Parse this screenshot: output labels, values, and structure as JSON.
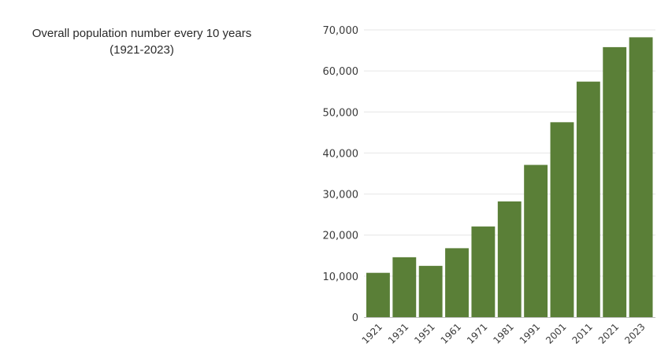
{
  "chart_data": {
    "type": "bar",
    "title": "Overall population number every 10 years",
    "subtitle": "(1921-2023)",
    "categories": [
      "1921",
      "1931",
      "1951",
      "1961",
      "1971",
      "1981",
      "1991",
      "2001",
      "2011",
      "2021",
      "2023"
    ],
    "values": [
      10800,
      14600,
      12500,
      16800,
      22100,
      28200,
      37100,
      47500,
      57400,
      65800,
      68200
    ],
    "ylim": [
      0,
      70000
    ],
    "yticks": [
      0,
      10000,
      20000,
      30000,
      40000,
      50000,
      60000,
      70000
    ],
    "ytick_labels": [
      "0",
      "10,000",
      "20,000",
      "30,000",
      "40,000",
      "50,000",
      "60,000",
      "70,000"
    ],
    "grid": true,
    "bar_color": "#5a7f37",
    "grid_color": "#e6e6e6",
    "axis_color": "#bdbdbd"
  }
}
